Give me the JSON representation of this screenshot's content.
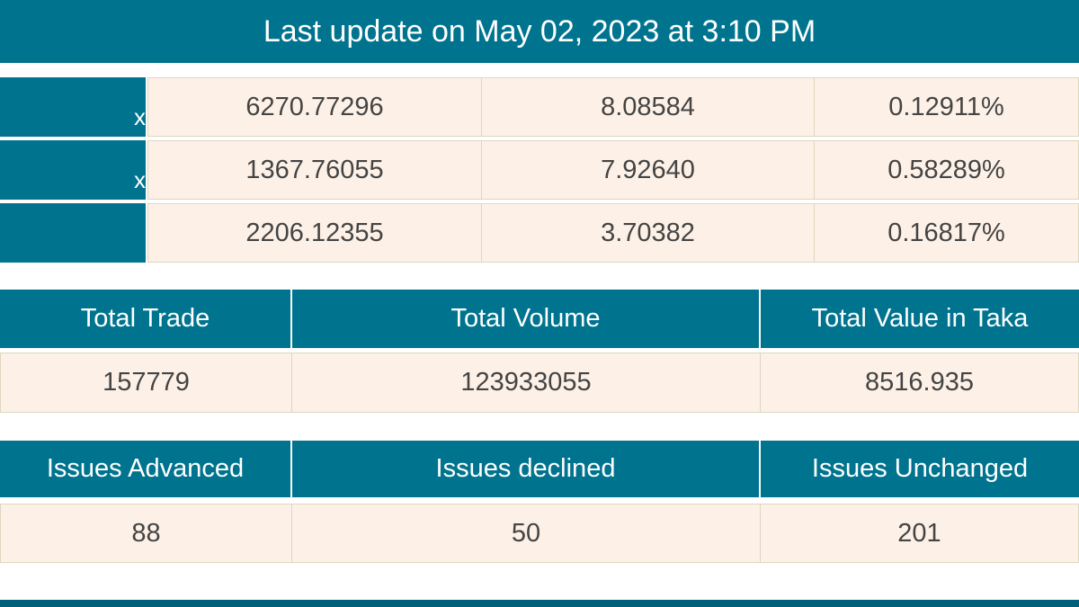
{
  "header": {
    "title": "Last update on May 02, 2023 at 3:10 PM"
  },
  "indices": [
    {
      "label": "x",
      "value": "6270.77296",
      "change": "8.08584",
      "percent": "0.12911%"
    },
    {
      "label": "x",
      "value": "1367.76055",
      "change": "7.92640",
      "percent": "0.58289%"
    },
    {
      "label": "",
      "value": "2206.12355",
      "change": "3.70382",
      "percent": "0.16817%"
    }
  ],
  "trade": {
    "headers": [
      "Total Trade",
      "Total Volume",
      "Total Value in Taka"
    ],
    "values": [
      "157779",
      "123933055",
      "8516.935"
    ]
  },
  "issues": {
    "headers": [
      "Issues Advanced",
      "Issues declined",
      "Issues Unchanged"
    ],
    "values": [
      "88",
      "50",
      "201"
    ]
  },
  "colors": {
    "accent": "#00748f",
    "cell_bg": "#fdf1e7"
  }
}
